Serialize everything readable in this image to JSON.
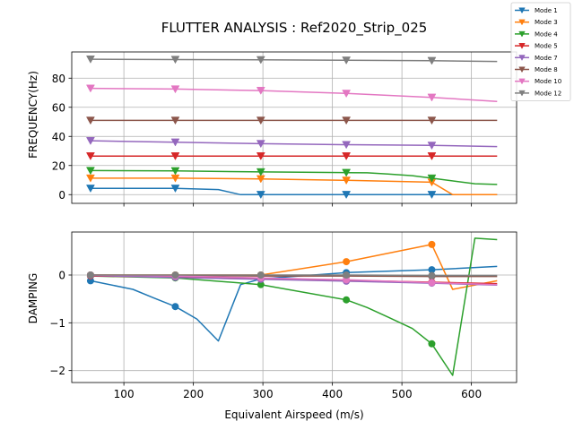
{
  "chart_data": {
    "type": "line",
    "title": "FLUTTER ANALYSIS : Ref2020_Strip_025",
    "xlabel": "Equivalent Airspeed (m/s)",
    "xticks": [
      100,
      200,
      300,
      400,
      500,
      600
    ],
    "xlim": [
      25,
      665
    ],
    "legend_position": "upper-right",
    "series_colors": {
      "Mode 1": "#1f77b4",
      "Mode 3": "#ff7f0e",
      "Mode 4": "#2ca02c",
      "Mode 5": "#d62728",
      "Mode 7": "#9467bd",
      "Mode 8": "#8c564b",
      "Mode 10": "#e377c2",
      "Mode 12": "#7f7f7f"
    },
    "subplots": [
      {
        "ylabel": "FREQUENCY(Hz)",
        "ylim": [
          -6,
          98
        ],
        "yticks": [
          0,
          20,
          40,
          60,
          80
        ],
        "marker": "triangle-down",
        "grid": true,
        "series": [
          {
            "name": "Mode 1",
            "x": [
              52,
              174,
              236,
              268,
              297,
              420,
              543,
              637
            ],
            "y": [
              4.3,
              4.3,
              3.5,
              0,
              0,
              0,
              0,
              0
            ]
          },
          {
            "name": "Mode 3",
            "x": [
              52,
              174,
              297,
              420,
              543,
              573,
              637
            ],
            "y": [
              11.3,
              11.3,
              10.8,
              9.8,
              8.5,
              0,
              0
            ]
          },
          {
            "name": "Mode 4",
            "x": [
              52,
              174,
              297,
              420,
              450,
              480,
              515,
              543,
              605,
              637
            ],
            "y": [
              16.5,
              16.3,
              15.6,
              15.1,
              15.0,
              14.2,
              13.0,
              11.3,
              7.5,
              7.0
            ]
          },
          {
            "name": "Mode 5",
            "x": [
              52,
              174,
              297,
              420,
              543,
              637
            ],
            "y": [
              26.5,
              26.5,
              26.5,
              26.5,
              26.5,
              26.5
            ]
          },
          {
            "name": "Mode 7",
            "x": [
              52,
              174,
              297,
              420,
              543,
              637
            ],
            "y": [
              37.0,
              36.0,
              35.0,
              34.3,
              33.8,
              33.0
            ]
          },
          {
            "name": "Mode 8",
            "x": [
              52,
              174,
              297,
              420,
              543,
              637
            ],
            "y": [
              51,
              51,
              51,
              51,
              51,
              51
            ]
          },
          {
            "name": "Mode 10",
            "x": [
              52,
              174,
              297,
              420,
              543,
              637
            ],
            "y": [
              73,
              72.5,
              71.5,
              69.5,
              66.8,
              64
            ]
          },
          {
            "name": "Mode 12",
            "x": [
              52,
              174,
              297,
              420,
              543,
              637
            ],
            "y": [
              93,
              92.8,
              92.6,
              92.3,
              92.0,
              91.5
            ]
          }
        ]
      },
      {
        "ylabel": "DAMPING",
        "ylim": [
          -2.25,
          0.9
        ],
        "yticks": [
          -2,
          -1,
          0
        ],
        "marker": "circle",
        "grid": true,
        "series": [
          {
            "name": "Mode 1",
            "x": [
              52,
              113,
              143,
              174,
              205,
              236,
              268,
              297,
              420,
              543,
              637
            ],
            "y": [
              -0.12,
              -0.3,
              -0.48,
              -0.66,
              -0.92,
              -1.38,
              -0.2,
              -0.08,
              0.05,
              0.11,
              0.18
            ]
          },
          {
            "name": "Mode 3",
            "x": [
              52,
              174,
              297,
              420,
              543,
              573,
              637
            ],
            "y": [
              0.0,
              0.0,
              0.0,
              0.28,
              0.64,
              -0.3,
              -0.12
            ]
          },
          {
            "name": "Mode 4",
            "x": [
              52,
              174,
              297,
              420,
              450,
              480,
              515,
              543,
              573,
              605,
              637
            ],
            "y": [
              -0.02,
              -0.06,
              -0.2,
              -0.52,
              -0.68,
              -0.88,
              -1.12,
              -1.44,
              -2.1,
              0.77,
              0.74
            ]
          },
          {
            "name": "Mode 5",
            "x": [
              52,
              174,
              297,
              420,
              543,
              637
            ],
            "y": [
              -0.02,
              -0.04,
              -0.07,
              -0.11,
              -0.15,
              -0.18
            ]
          },
          {
            "name": "Mode 7",
            "x": [
              52,
              174,
              297,
              420,
              543,
              637
            ],
            "y": [
              -0.01,
              -0.05,
              -0.09,
              -0.13,
              -0.17,
              -0.21
            ]
          },
          {
            "name": "Mode 8",
            "x": [
              52,
              174,
              297,
              420,
              543,
              637
            ],
            "y": [
              0.0,
              -0.01,
              -0.02,
              -0.02,
              -0.03,
              -0.03
            ]
          },
          {
            "name": "Mode 10",
            "x": [
              52,
              174,
              297,
              420,
              543,
              637
            ],
            "y": [
              0.0,
              -0.02,
              -0.06,
              -0.1,
              -0.16,
              -0.2
            ]
          },
          {
            "name": "Mode 12",
            "x": [
              52,
              174,
              297,
              420,
              543,
              637
            ],
            "y": [
              0.0,
              0.0,
              0.0,
              0.0,
              -0.01,
              -0.01
            ]
          }
        ]
      }
    ]
  }
}
